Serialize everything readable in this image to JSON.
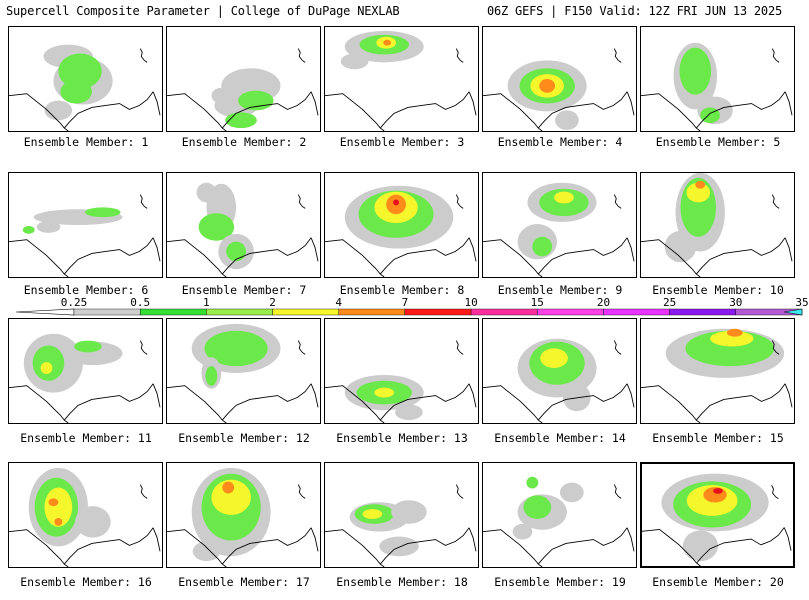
{
  "header": {
    "left": "Supercell Composite Parameter | College of DuPage NEXLAB",
    "right": "06Z GEFS | F150 Valid: 12Z FRI JUN 13 2025"
  },
  "colorbar": {
    "levels": [
      "0.25",
      "0.5",
      "1",
      "2",
      "4",
      "7",
      "10",
      "15",
      "20",
      "25",
      "30",
      "35"
    ],
    "colors": [
      "#cfcfcf",
      "#34e034",
      "#99f04a",
      "#f6f62c",
      "#ff8c1a",
      "#ff1a1a",
      "#ff2fa0",
      "#ff40e6",
      "#ea33ff",
      "#8c19f0",
      "#b45ad6",
      "#3ee8f0"
    ]
  },
  "selected_member": 20,
  "members": [
    {
      "label": "Ensemble Member: 1",
      "blobs": [
        [
          "g",
          60,
          30,
          25,
          12
        ],
        [
          "g",
          75,
          55,
          30,
          24
        ],
        [
          "l",
          72,
          45,
          22,
          18
        ],
        [
          "l",
          68,
          66,
          16,
          12
        ],
        [
          "g",
          50,
          85,
          14,
          10
        ]
      ]
    },
    {
      "label": "Ensemble Member: 2",
      "blobs": [
        [
          "g",
          85,
          60,
          30,
          18
        ],
        [
          "g",
          70,
          80,
          22,
          12
        ],
        [
          "l",
          90,
          75,
          18,
          10
        ],
        [
          "l",
          75,
          95,
          16,
          8
        ],
        [
          "g",
          55,
          70,
          10,
          8
        ]
      ]
    },
    {
      "label": "Ensemble Member: 3",
      "blobs": [
        [
          "g",
          60,
          20,
          40,
          16
        ],
        [
          "l",
          60,
          18,
          25,
          10
        ],
        [
          "y",
          62,
          16,
          10,
          6
        ],
        [
          "o",
          63,
          16,
          4,
          3
        ],
        [
          "g",
          30,
          35,
          14,
          8
        ]
      ]
    },
    {
      "label": "Ensemble Member: 4",
      "blobs": [
        [
          "g",
          65,
          60,
          40,
          26
        ],
        [
          "l",
          65,
          60,
          28,
          18
        ],
        [
          "y",
          65,
          60,
          17,
          12
        ],
        [
          "o",
          65,
          60,
          8,
          7
        ],
        [
          "g",
          85,
          95,
          12,
          10
        ]
      ]
    },
    {
      "label": "Ensemble Member: 5",
      "blobs": [
        [
          "g",
          55,
          50,
          22,
          34
        ],
        [
          "l",
          55,
          45,
          16,
          24
        ],
        [
          "g",
          75,
          85,
          18,
          14
        ],
        [
          "l",
          70,
          90,
          10,
          8
        ]
      ]
    },
    {
      "label": "Ensemble Member: 6",
      "blobs": [
        [
          "g",
          70,
          45,
          45,
          8
        ],
        [
          "l",
          95,
          40,
          18,
          5
        ],
        [
          "g",
          40,
          55,
          12,
          6
        ],
        [
          "l",
          20,
          58,
          6,
          4
        ]
      ]
    },
    {
      "label": "Ensemble Member: 7",
      "blobs": [
        [
          "g",
          55,
          35,
          15,
          24
        ],
        [
          "l",
          50,
          55,
          18,
          14
        ],
        [
          "g",
          70,
          80,
          18,
          18
        ],
        [
          "l",
          70,
          80,
          10,
          10
        ],
        [
          "g",
          40,
          20,
          10,
          10
        ]
      ]
    },
    {
      "label": "Ensemble Member: 8",
      "blobs": [
        [
          "g",
          75,
          45,
          55,
          32
        ],
        [
          "l",
          72,
          42,
          38,
          24
        ],
        [
          "y",
          72,
          35,
          22,
          16
        ],
        [
          "o",
          72,
          32,
          10,
          10
        ],
        [
          "r",
          72,
          30,
          3,
          3
        ]
      ]
    },
    {
      "label": "Ensemble Member: 9",
      "blobs": [
        [
          "g",
          80,
          30,
          35,
          20
        ],
        [
          "l",
          82,
          30,
          25,
          14
        ],
        [
          "y",
          82,
          25,
          10,
          6
        ],
        [
          "g",
          55,
          70,
          20,
          18
        ],
        [
          "l",
          60,
          75,
          10,
          10
        ]
      ]
    },
    {
      "label": "Ensemble Member: 10",
      "blobs": [
        [
          "g",
          60,
          40,
          25,
          40
        ],
        [
          "l",
          58,
          35,
          18,
          30
        ],
        [
          "y",
          58,
          20,
          12,
          10
        ],
        [
          "o",
          60,
          12,
          5,
          4
        ],
        [
          "g",
          40,
          75,
          16,
          16
        ]
      ]
    },
    {
      "label": "Ensemble Member: 11",
      "blobs": [
        [
          "g",
          45,
          45,
          30,
          30
        ],
        [
          "l",
          40,
          45,
          16,
          18
        ],
        [
          "y",
          38,
          50,
          6,
          6
        ],
        [
          "g",
          85,
          35,
          30,
          12
        ],
        [
          "l",
          80,
          28,
          14,
          6
        ]
      ]
    },
    {
      "label": "Ensemble Member: 12",
      "blobs": [
        [
          "g",
          70,
          30,
          45,
          25
        ],
        [
          "l",
          70,
          30,
          32,
          18
        ],
        [
          "g",
          45,
          55,
          10,
          16
        ],
        [
          "l",
          45,
          58,
          6,
          10
        ]
      ]
    },
    {
      "label": "Ensemble Member: 13",
      "blobs": [
        [
          "g",
          60,
          75,
          40,
          18
        ],
        [
          "l",
          60,
          75,
          28,
          12
        ],
        [
          "y",
          60,
          75,
          10,
          5
        ],
        [
          "g",
          85,
          95,
          14,
          8
        ]
      ]
    },
    {
      "label": "Ensemble Member: 14",
      "blobs": [
        [
          "g",
          75,
          50,
          40,
          30
        ],
        [
          "l",
          75,
          45,
          28,
          22
        ],
        [
          "y",
          72,
          40,
          14,
          10
        ],
        [
          "g",
          95,
          80,
          14,
          14
        ]
      ]
    },
    {
      "label": "Ensemble Member: 15",
      "blobs": [
        [
          "g",
          85,
          35,
          60,
          25
        ],
        [
          "l",
          90,
          30,
          45,
          18
        ],
        [
          "y",
          92,
          20,
          22,
          8
        ],
        [
          "o",
          95,
          14,
          8,
          4
        ]
      ]
    },
    {
      "label": "Ensemble Member: 16",
      "blobs": [
        [
          "g",
          50,
          45,
          30,
          40
        ],
        [
          "l",
          48,
          45,
          22,
          30
        ],
        [
          "y",
          50,
          45,
          14,
          20
        ],
        [
          "o",
          45,
          40,
          5,
          4
        ],
        [
          "o",
          50,
          60,
          4,
          4
        ],
        [
          "g",
          85,
          60,
          18,
          16
        ]
      ]
    },
    {
      "label": "Ensemble Member: 17",
      "blobs": [
        [
          "g",
          65,
          50,
          40,
          45
        ],
        [
          "l",
          65,
          45,
          30,
          34
        ],
        [
          "y",
          65,
          35,
          20,
          18
        ],
        [
          "o",
          62,
          25,
          6,
          6
        ],
        [
          "g",
          40,
          90,
          14,
          10
        ]
      ]
    },
    {
      "label": "Ensemble Member: 18",
      "blobs": [
        [
          "g",
          55,
          55,
          30,
          15
        ],
        [
          "l",
          50,
          52,
          20,
          10
        ],
        [
          "y",
          48,
          52,
          10,
          5
        ],
        [
          "g",
          85,
          50,
          18,
          12
        ],
        [
          "g",
          75,
          85,
          20,
          10
        ]
      ]
    },
    {
      "label": "Ensemble Member: 19",
      "blobs": [
        [
          "g",
          60,
          50,
          25,
          18
        ],
        [
          "l",
          55,
          45,
          14,
          12
        ],
        [
          "g",
          90,
          30,
          12,
          10
        ],
        [
          "l",
          50,
          20,
          6,
          6
        ],
        [
          "g",
          40,
          70,
          10,
          8
        ]
      ]
    },
    {
      "label": "Ensemble Member: 20",
      "blobs": [
        [
          "g",
          75,
          40,
          55,
          30
        ],
        [
          "l",
          72,
          42,
          40,
          24
        ],
        [
          "y",
          72,
          38,
          26,
          16
        ],
        [
          "o",
          75,
          32,
          12,
          8
        ],
        [
          "r",
          78,
          28,
          5,
          3
        ],
        [
          "g",
          60,
          85,
          18,
          16
        ]
      ]
    }
  ]
}
